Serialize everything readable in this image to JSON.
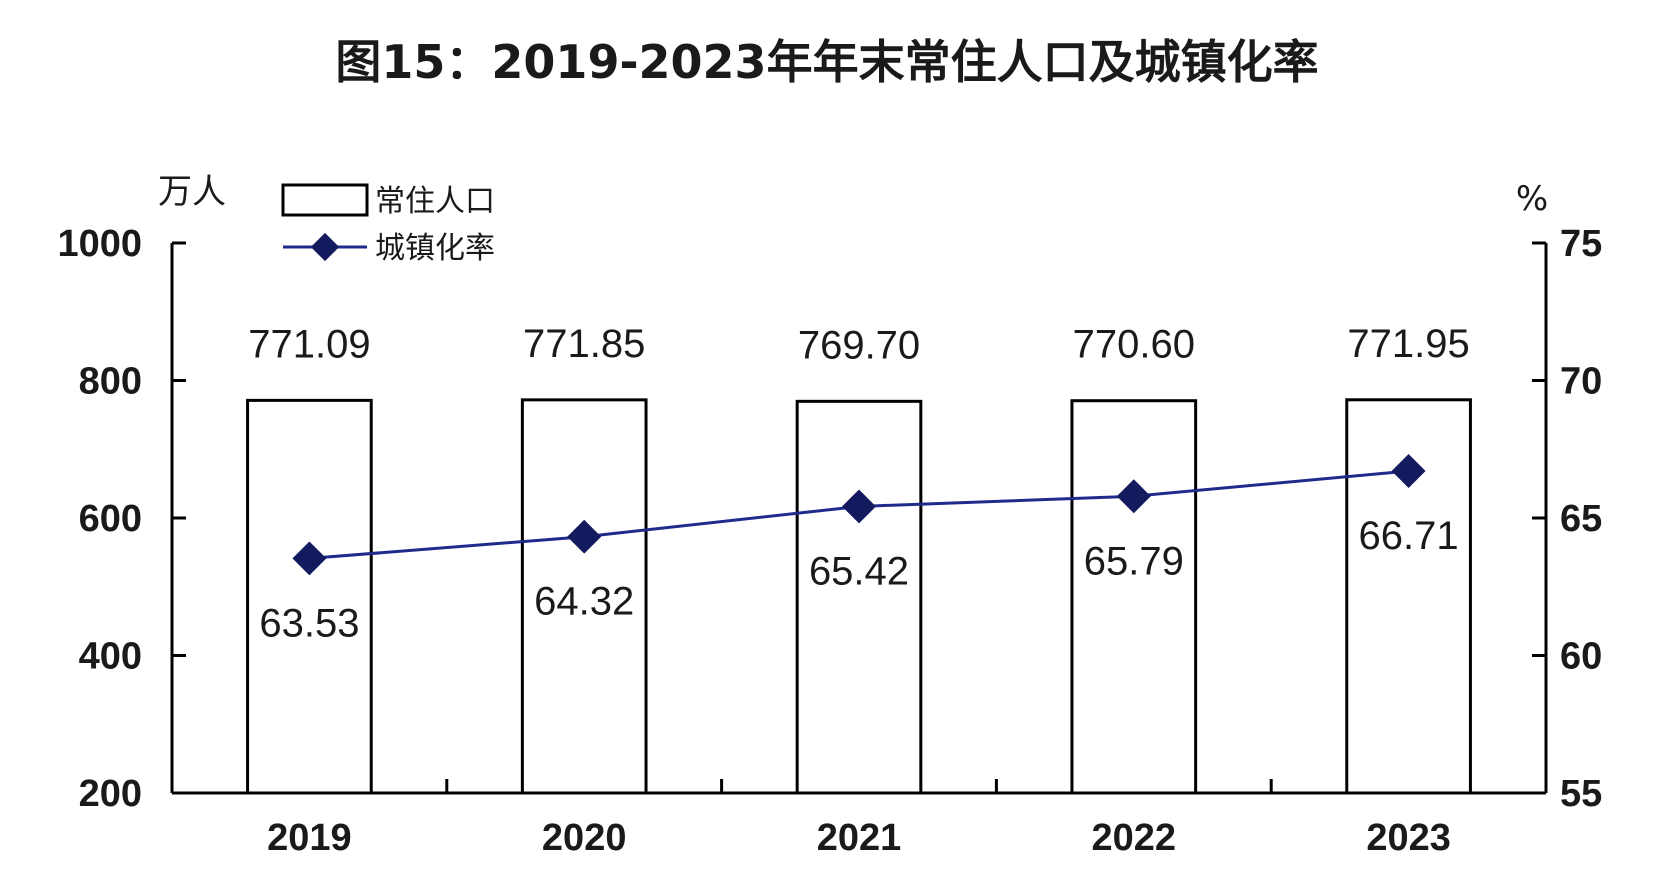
{
  "chart_data": {
    "type": "bar",
    "title": "图15：2019-2023年年末常住人口及城镇化率",
    "categories": [
      "2019",
      "2020",
      "2021",
      "2022",
      "2023"
    ],
    "series": [
      {
        "name": "常住人口",
        "type": "bar",
        "axis": "left",
        "values": [
          771.09,
          771.85,
          769.7,
          770.6,
          771.95
        ],
        "labels": [
          "771.09",
          "771.85",
          "769.70",
          "770.60",
          "771.95"
        ]
      },
      {
        "name": "城镇化率",
        "type": "line",
        "axis": "right",
        "marker": "diamond",
        "values": [
          63.53,
          64.32,
          65.42,
          65.79,
          66.71
        ],
        "labels": [
          "63.53",
          "64.32",
          "65.42",
          "65.79",
          "66.71"
        ]
      }
    ],
    "left_axis": {
      "unit": "万人",
      "ylim": [
        200,
        1000
      ],
      "ticks": [
        "200",
        "400",
        "600",
        "800",
        "1000"
      ]
    },
    "right_axis": {
      "unit": "%",
      "ylim": [
        55,
        75
      ],
      "ticks": [
        "55",
        "60",
        "65",
        "70",
        "75"
      ]
    },
    "legend": {
      "placement": "top-left",
      "entries": [
        "常住人口",
        "城镇化率"
      ]
    },
    "grid": false,
    "colors": {
      "bar_fill": "#ffffff",
      "bar_stroke": "#000000",
      "line": "#1f2b8c",
      "marker": "#141a5e",
      "axis": "#000000",
      "text": "#1a1a1a"
    }
  }
}
